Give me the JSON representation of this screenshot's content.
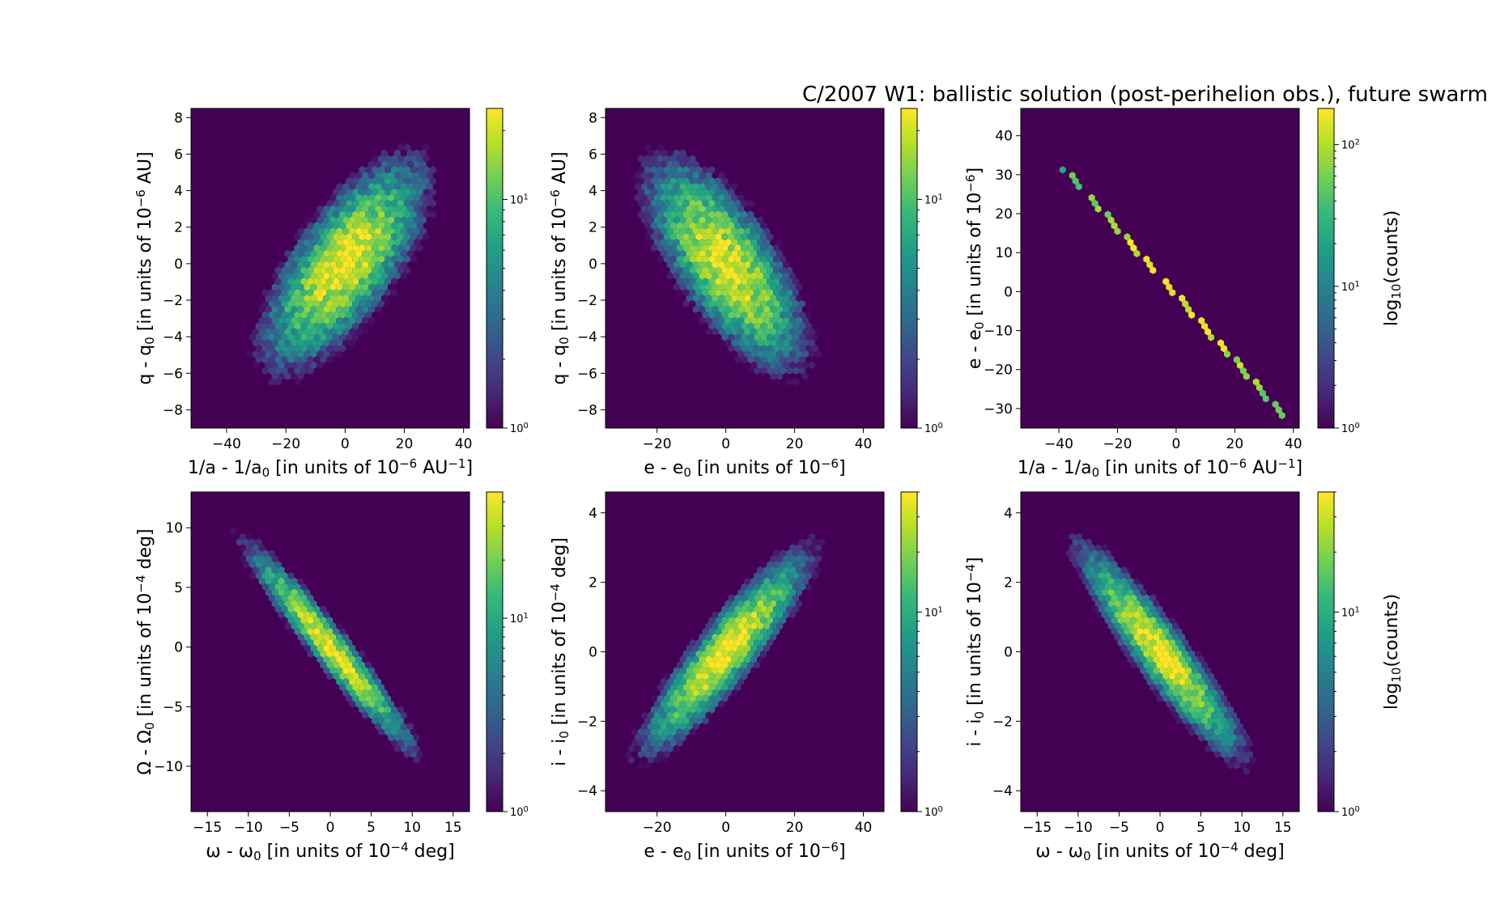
{
  "figure": {
    "title": "C/2007 W1:  ballistic solution (post-perihelion obs.), future swarm"
  },
  "colormap": [
    "#440154",
    "#482878",
    "#3e4989",
    "#31688e",
    "#26828e",
    "#1f9e89",
    "#35b779",
    "#6ece58",
    "#b5de2b",
    "#fde725"
  ],
  "chart_data": [
    {
      "type": "heatmap",
      "subtype": "hexbin",
      "xlabel": "1/a - 1/a0 [in units of 10^-6 AU^-1]",
      "ylabel": "q - q0 [in units of 10^-6 AU]",
      "xlabel_parts": [
        "1/a - 1/a",
        "0",
        " [in units of 10",
        "−6",
        " AU",
        "−1",
        "]"
      ],
      "ylabel_parts": [
        "q - q",
        "0",
        " [in units of 10",
        "−6",
        " AU]"
      ],
      "xlim": [
        -52,
        42
      ],
      "ylim": [
        -9,
        8.5
      ],
      "xticks": [
        -40,
        -20,
        0,
        20,
        40
      ],
      "yticks": [
        -8,
        -6,
        -4,
        -2,
        0,
        2,
        4,
        6,
        8
      ],
      "xtick_labels": [
        "−40",
        "−20",
        "0",
        "20",
        "40"
      ],
      "ytick_labels": [
        "−8",
        "−6",
        "−4",
        "−2",
        "0",
        "2",
        "4",
        "6",
        "8"
      ],
      "distribution": {
        "center": [
          0,
          0
        ],
        "sigma": [
          12.5,
          2.6
        ],
        "correlation": 0.7
      },
      "colorbar": {
        "scale": "log",
        "range": [
          1,
          25
        ],
        "ticks": [
          {
            "exp": "0",
            "value": 1
          },
          {
            "exp": "1",
            "value": 10
          }
        ],
        "label": ""
      }
    },
    {
      "type": "heatmap",
      "subtype": "hexbin",
      "xlabel": "e - e0 [in units of 10^-6]",
      "ylabel": "q - q0 [in units of 10^-6 AU]",
      "xlabel_parts": [
        "e - e",
        "0",
        " [in units of 10",
        "−6",
        "]"
      ],
      "ylabel_parts": [
        "q - q",
        "0",
        " [in units of 10",
        "−6",
        " AU]"
      ],
      "xlim": [
        -35,
        46
      ],
      "ylim": [
        -9,
        8.5
      ],
      "xticks": [
        -20,
        0,
        20,
        40
      ],
      "yticks": [
        -8,
        -6,
        -4,
        -2,
        0,
        2,
        4,
        6,
        8
      ],
      "xtick_labels": [
        "−20",
        "0",
        "20",
        "40"
      ],
      "ytick_labels": [
        "−8",
        "−6",
        "−4",
        "−2",
        "0",
        "2",
        "4",
        "6",
        "8"
      ],
      "distribution": {
        "center": [
          0,
          0
        ],
        "sigma": [
          10.5,
          2.6
        ],
        "correlation": -0.7
      },
      "colorbar": {
        "scale": "log",
        "range": [
          1,
          25
        ],
        "ticks": [
          {
            "exp": "0",
            "value": 1
          },
          {
            "exp": "1",
            "value": 10
          }
        ],
        "label": ""
      }
    },
    {
      "type": "heatmap",
      "subtype": "hexbin",
      "xlabel": "1/a - 1/a0 [in units of 10^-6 AU^-1]",
      "ylabel": "e - e0 [in units of 10^-6]",
      "xlabel_parts": [
        "1/a - 1/a",
        "0",
        " [in units of 10",
        "−6",
        " AU",
        "−1",
        "]"
      ],
      "ylabel_parts": [
        "e - e",
        "0",
        " [in units of 10",
        "−6",
        "]"
      ],
      "xlim": [
        -53,
        42
      ],
      "ylim": [
        -35,
        47
      ],
      "xticks": [
        -40,
        -20,
        0,
        20,
        40
      ],
      "yticks": [
        -30,
        -20,
        -10,
        0,
        10,
        20,
        30,
        40
      ],
      "xtick_labels": [
        "−40",
        "−20",
        "0",
        "20",
        "40"
      ],
      "ytick_labels": [
        "−30",
        "−20",
        "−10",
        "0",
        "10",
        "20",
        "30",
        "40"
      ],
      "distribution": {
        "line": {
          "x": [
            -38,
            38
          ],
          "y": [
            31.5,
            -33
          ]
        }
      },
      "colorbar": {
        "scale": "log",
        "range": [
          1,
          180
        ],
        "ticks": [
          {
            "exp": "0",
            "value": 1
          },
          {
            "exp": "1",
            "value": 10
          },
          {
            "exp": "2",
            "value": 100
          }
        ],
        "label": "log10(counts)"
      }
    },
    {
      "type": "heatmap",
      "subtype": "hexbin",
      "xlabel": "ω - ω0 [in units of 10^-4 deg]",
      "ylabel": "Ω - Ω0 [in units of 10^-4 deg]",
      "xlabel_parts": [
        "ω - ω",
        "0",
        " [in units of 10",
        "−4",
        " deg]"
      ],
      "ylabel_parts": [
        "Ω - Ω",
        "0",
        " [in units of 10",
        "−4",
        " deg]"
      ],
      "xlim": [
        -17,
        17
      ],
      "ylim": [
        -13.8,
        13
      ],
      "xticks": [
        -15,
        -10,
        -5,
        0,
        5,
        10,
        15
      ],
      "yticks": [
        -10,
        -5,
        0,
        5,
        10
      ],
      "xtick_labels": [
        "−15",
        "−10",
        "−5",
        "0",
        "5",
        "10",
        "15"
      ],
      "ytick_labels": [
        "−10",
        "−5",
        "0",
        "5",
        "10"
      ],
      "distribution": {
        "center": [
          0,
          0
        ],
        "sigma": [
          4.3,
          3.6
        ],
        "correlation": -0.96
      },
      "colorbar": {
        "scale": "log",
        "range": [
          1,
          45
        ],
        "ticks": [
          {
            "exp": "0",
            "value": 1
          },
          {
            "exp": "1",
            "value": 10
          }
        ],
        "label": ""
      }
    },
    {
      "type": "heatmap",
      "subtype": "hexbin",
      "xlabel": "e - e0 [in units of 10^-6]",
      "ylabel": "i - i0 [in units of 10^-4 deg]",
      "xlabel_parts": [
        "e - e",
        "0",
        " [in units of 10",
        "−6",
        "]"
      ],
      "ylabel_parts": [
        "i - i",
        "0",
        " [in units of 10",
        "−4",
        " deg]"
      ],
      "xlim": [
        -35,
        46
      ],
      "ylim": [
        -4.6,
        4.6
      ],
      "xticks": [
        -20,
        0,
        20,
        40
      ],
      "yticks": [
        -4,
        -2,
        0,
        2,
        4
      ],
      "xtick_labels": [
        "−20",
        "0",
        "20",
        "40"
      ],
      "ytick_labels": [
        "−4",
        "−2",
        "0",
        "2",
        "4"
      ],
      "distribution": {
        "center": [
          0,
          0
        ],
        "sigma": [
          10.5,
          1.25
        ],
        "correlation": 0.9
      },
      "colorbar": {
        "scale": "log",
        "range": [
          1,
          40
        ],
        "ticks": [
          {
            "exp": "0",
            "value": 1
          },
          {
            "exp": "1",
            "value": 10
          }
        ],
        "label": ""
      }
    },
    {
      "type": "heatmap",
      "subtype": "hexbin",
      "xlabel": "ω - ω0 [in units of 10^-4 deg]",
      "ylabel": "i - i0 [in units of 10^-4]",
      "xlabel_parts": [
        "ω - ω",
        "0",
        " [in units of 10",
        "−4",
        " deg]"
      ],
      "ylabel_parts": [
        "i - i",
        "0",
        " [in units of 10",
        "−4",
        "]"
      ],
      "xlim": [
        -17,
        17
      ],
      "ylim": [
        -4.6,
        4.6
      ],
      "xticks": [
        -15,
        -10,
        -5,
        0,
        5,
        10,
        15
      ],
      "yticks": [
        -4,
        -2,
        0,
        2,
        4
      ],
      "xtick_labels": [
        "−15",
        "−10",
        "−5",
        "0",
        "5",
        "10",
        "15"
      ],
      "ytick_labels": [
        "−4",
        "−2",
        "0",
        "2",
        "4"
      ],
      "distribution": {
        "center": [
          0,
          0
        ],
        "sigma": [
          4.3,
          1.3
        ],
        "correlation": -0.92
      },
      "colorbar": {
        "scale": "log",
        "range": [
          1,
          40
        ],
        "ticks": [
          {
            "exp": "0",
            "value": 1
          },
          {
            "exp": "1",
            "value": 10
          }
        ],
        "label": "log10(counts)"
      }
    }
  ]
}
